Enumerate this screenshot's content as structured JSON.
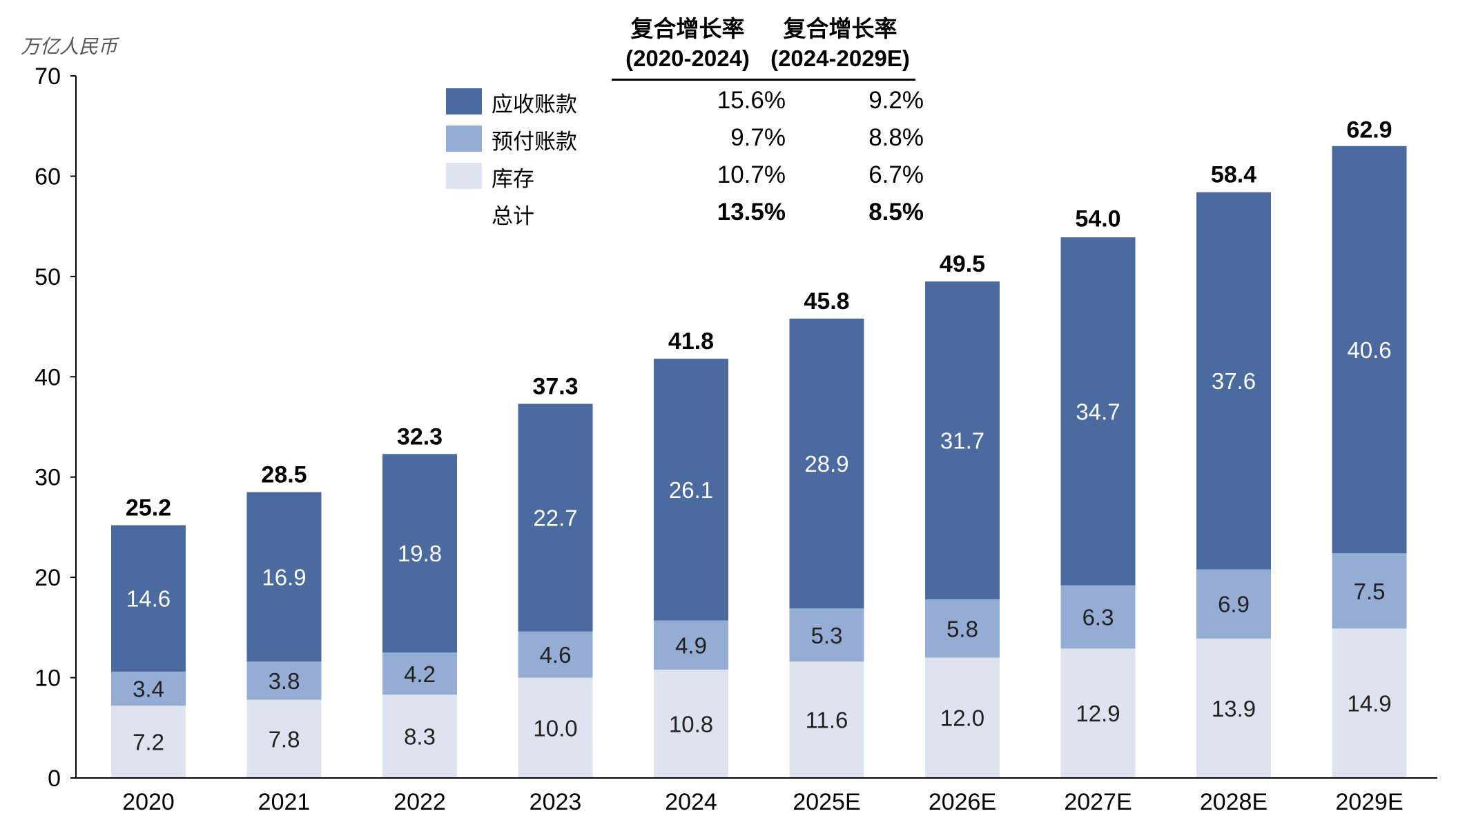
{
  "unit_label": "万亿人民币",
  "cagr_table": {
    "headers": [
      {
        "title": "复合增长率",
        "period": "(2020-2024)"
      },
      {
        "title": "复合增长率",
        "period": "(2024-2029E)"
      }
    ],
    "rows": [
      {
        "label": "应收账款",
        "color": "#4a6aa0",
        "cagr_2020_2024": "15.6%",
        "cagr_2024_2029": "9.2%",
        "bold": false
      },
      {
        "label": "预付账款",
        "color": "#95add4",
        "cagr_2020_2024": "9.7%",
        "cagr_2024_2029": "8.8%",
        "bold": false
      },
      {
        "label": "库存",
        "color": "#dde4ef",
        "cagr_2020_2024": "10.7%",
        "cagr_2024_2029": "6.7%",
        "bold": false
      },
      {
        "label": "总计",
        "color": "",
        "cagr_2020_2024": "13.5%",
        "cagr_2024_2029": "8.5%",
        "bold": true
      }
    ]
  },
  "chart_data": {
    "type": "bar",
    "stacked": true,
    "categories": [
      "2020",
      "2021",
      "2022",
      "2023",
      "2024",
      "2025E",
      "2026E",
      "2027E",
      "2028E",
      "2029E"
    ],
    "series": [
      {
        "name": "库存",
        "color": "#dde4ef",
        "label_color": "#222222",
        "values": [
          7.2,
          7.8,
          8.3,
          10.0,
          10.8,
          11.6,
          12.0,
          12.9,
          13.9,
          14.9
        ]
      },
      {
        "name": "预付账款",
        "color": "#95add4",
        "label_color": "#222222",
        "values": [
          3.4,
          3.8,
          4.2,
          4.6,
          4.9,
          5.3,
          5.8,
          6.3,
          6.9,
          7.5
        ]
      },
      {
        "name": "应收账款",
        "color": "#4a6aa0",
        "label_color": "#ffffff",
        "values": [
          14.6,
          16.9,
          19.8,
          22.7,
          26.1,
          28.9,
          31.7,
          34.7,
          37.6,
          40.6
        ]
      }
    ],
    "totals": [
      25.2,
      28.5,
      32.3,
      37.3,
      41.8,
      45.8,
      49.5,
      54.0,
      58.4,
      62.9
    ],
    "ylim": [
      0,
      70
    ],
    "yticks": [
      0,
      10,
      20,
      30,
      40,
      50,
      60,
      70
    ],
    "grid": false,
    "legend": "top-center"
  }
}
